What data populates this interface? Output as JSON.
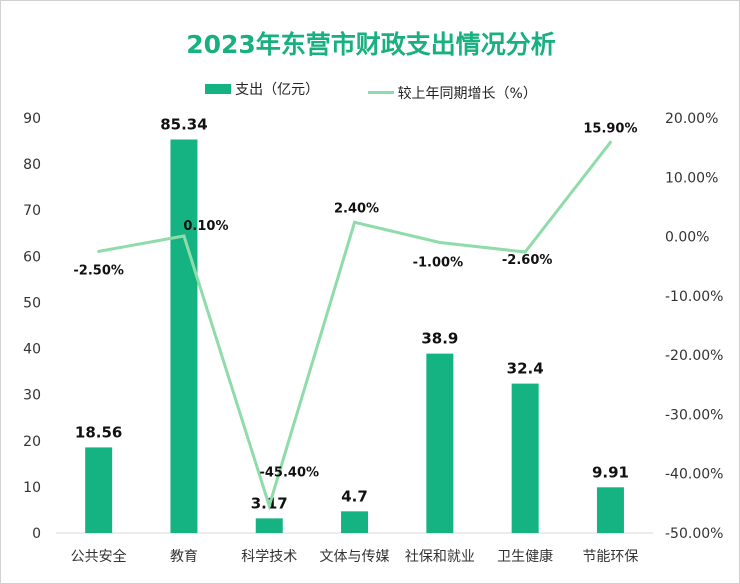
{
  "chart_data": {
    "type": "bar+line",
    "title": "2023年东营市财政支出情况分析",
    "categories": [
      "公共安全",
      "教育",
      "科学技术",
      "文体与传媒",
      "社保和就业",
      "卫生健康",
      "节能环保"
    ],
    "series": [
      {
        "name": "支出（亿元）",
        "type": "bar",
        "axis": "left",
        "values": [
          18.56,
          85.34,
          3.17,
          4.7,
          38.9,
          32.4,
          9.91
        ],
        "labels": [
          "18.56",
          "85.34",
          "3.17",
          "4.7",
          "38.9",
          "32.4",
          "9.91"
        ],
        "color": "#15b381"
      },
      {
        "name": "较上年同期增长（%）",
        "type": "line",
        "axis": "right",
        "values": [
          -2.5,
          0.1,
          -45.4,
          2.4,
          -1.0,
          -2.6,
          15.9
        ],
        "labels": [
          "-2.50%",
          "0.10%",
          "-45.40%",
          "2.40%",
          "-1.00%",
          "-2.60%",
          "15.90%"
        ],
        "color": "#8fdcaa"
      }
    ],
    "left_axis": {
      "ylim": [
        0,
        90
      ],
      "ticks": [
        "0",
        "10",
        "20",
        "30",
        "40",
        "50",
        "60",
        "70",
        "80",
        "90"
      ]
    },
    "right_axis": {
      "ylim": [
        -50,
        20
      ],
      "ticks": [
        "-50.00%",
        "-40.00%",
        "-30.00%",
        "-20.00%",
        "-10.00%",
        "0.00%",
        "10.00%",
        "20.00%"
      ]
    },
    "grid": false,
    "legend": "top"
  }
}
